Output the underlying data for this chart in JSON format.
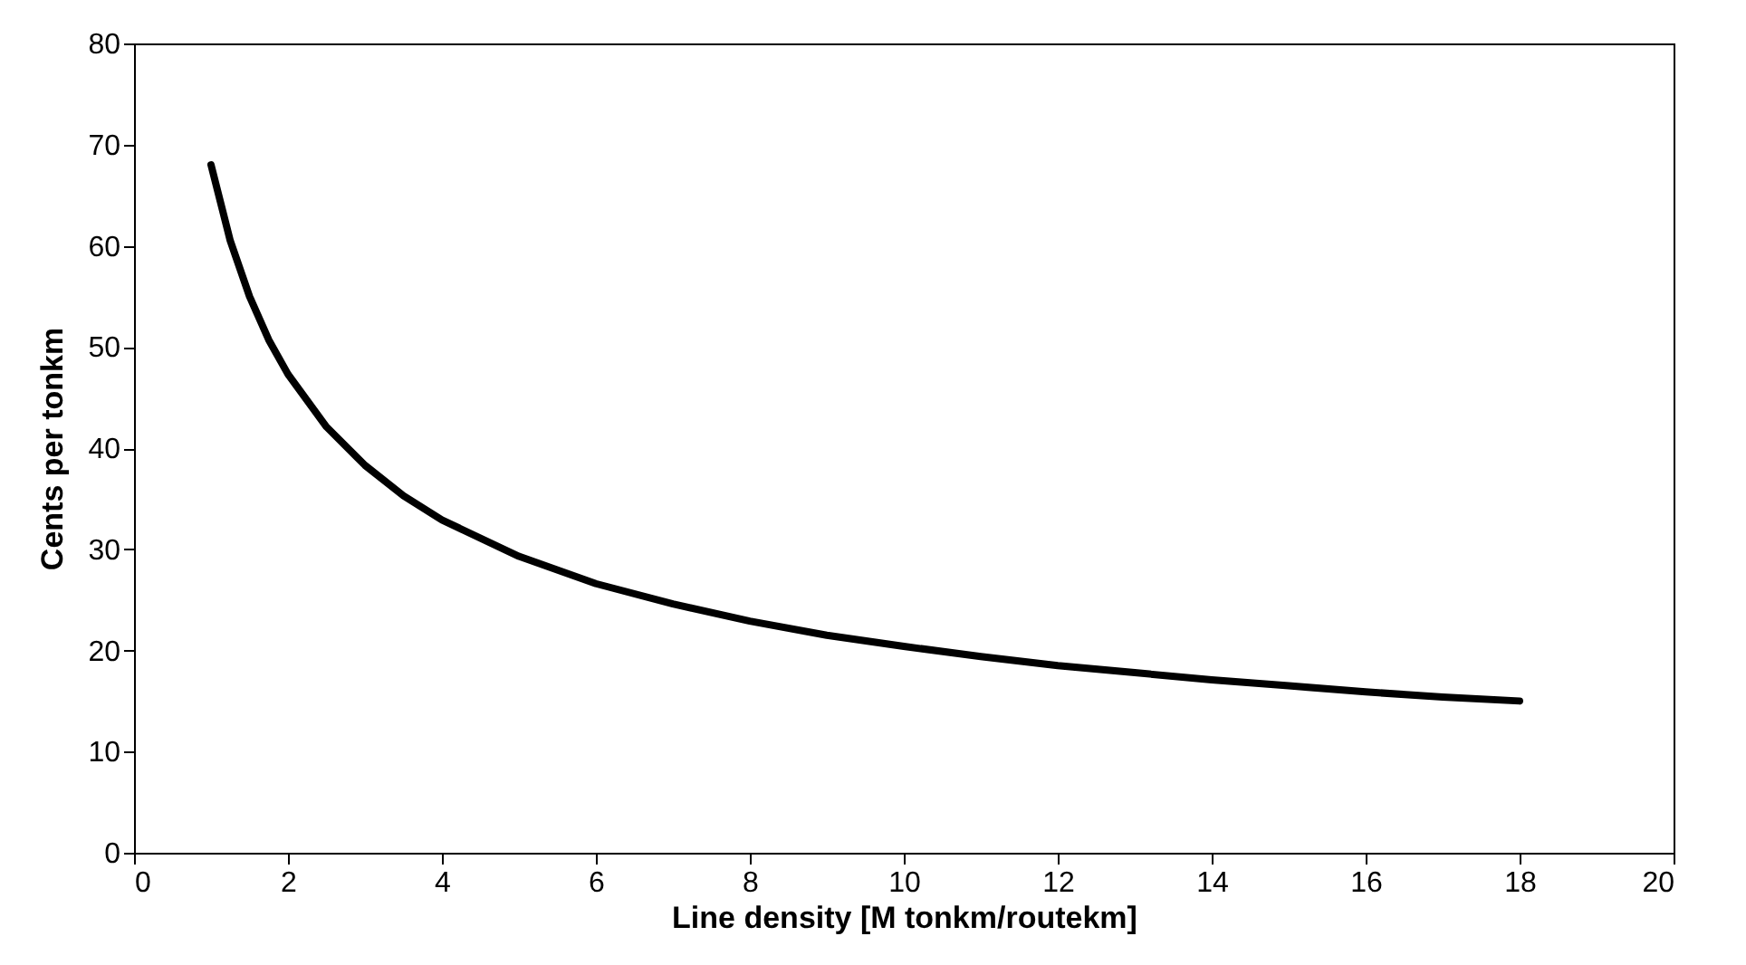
{
  "chart_data": {
    "type": "line",
    "xlabel": "Line density [M tonkm/routekm]",
    "ylabel": "Cents per tonkm",
    "xlim": [
      0,
      20
    ],
    "xticks": [
      0,
      2,
      4,
      6,
      8,
      10,
      12,
      14,
      16,
      18,
      20
    ],
    "ylim": [
      0,
      80
    ],
    "yticks": [
      0,
      10,
      20,
      30,
      40,
      50,
      60,
      70,
      80
    ],
    "grid": false,
    "legend": false,
    "marker": "none",
    "line_style": "solid",
    "series": [
      {
        "color": "#000000",
        "x": [
          1,
          1.25,
          1.5,
          1.75,
          2,
          2.5,
          3,
          3.5,
          4,
          5,
          6,
          7,
          8,
          9,
          10,
          11,
          12,
          13,
          14,
          15,
          16,
          17,
          18
        ],
        "values": [
          68,
          60.5,
          55,
          50.7,
          47.3,
          42.1,
          38.3,
          35.3,
          32.9,
          29.3,
          26.6,
          24.6,
          22.9,
          21.5,
          20.4,
          19.4,
          18.5,
          17.8,
          17.1,
          16.5,
          15.9,
          15.4,
          15
        ]
      }
    ]
  }
}
